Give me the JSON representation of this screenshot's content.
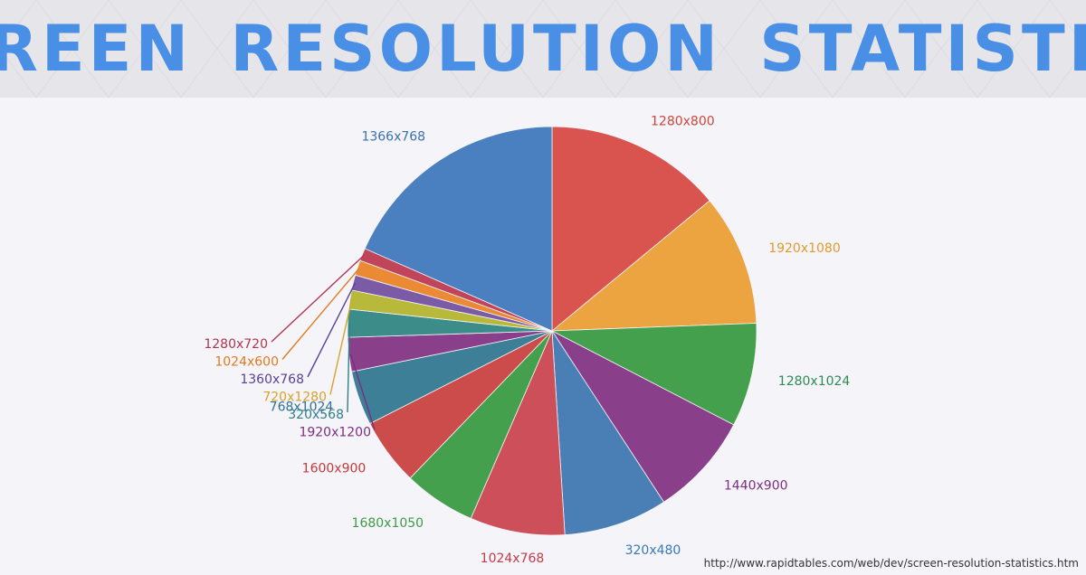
{
  "title": "SCREEN RESOLUTION STATISTICS",
  "source_url": "http://www.rapidtables.com/web/dev/screen-resolution-statistics.htm",
  "chart_data": {
    "type": "pie",
    "start": "top, clockwise",
    "slices": [
      {
        "label": "1280x800",
        "value": 14.0,
        "color": "#d9534f"
      },
      {
        "label": "1920x1080",
        "value": 10.4,
        "color": "#eba43f"
      },
      {
        "label": "1280x1024",
        "value": 8.2,
        "color": "#44a04c"
      },
      {
        "label": "1440x900",
        "value": 8.2,
        "color": "#8a3f8a"
      },
      {
        "label": "320x480",
        "value": 8.2,
        "color": "#4a7fb5"
      },
      {
        "label": "1024x768",
        "value": 7.5,
        "color": "#cc4f59"
      },
      {
        "label": "1680x1050",
        "value": 5.7,
        "color": "#44a04c"
      },
      {
        "label": "1600x900",
        "value": 5.3,
        "color": "#cc4b4b"
      },
      {
        "label": "768x1024",
        "value": 4.3,
        "color": "#3c7f96"
      },
      {
        "label": "1920x1200",
        "value": 2.7,
        "color": "#8a3f8a"
      },
      {
        "label": "320x568",
        "value": 2.2,
        "color": "#3c8d8a"
      },
      {
        "label": "720x1280",
        "value": 1.5,
        "color": "#b8b93a"
      },
      {
        "label": "1360x768",
        "value": 1.2,
        "color": "#7b5aa6"
      },
      {
        "label": "1024x600",
        "value": 1.2,
        "color": "#eb8a35"
      },
      {
        "label": "1280x720",
        "value": 1.0,
        "color": "#c0455a"
      },
      {
        "label": "1366x768",
        "value": 18.4,
        "color": "#4a80c0"
      }
    ],
    "label_colors": {
      "1280x800": "#d0453b",
      "1920x1080": "#e29a2b",
      "1280x1024": "#2e8b57",
      "1440x900": "#7d2e82",
      "320x480": "#3a78b8",
      "1024x768": "#c23b4a",
      "1680x1050": "#3f9a46",
      "1600x900": "#c23b3b",
      "768x1024": "#2f6f99",
      "1920x1200": "#7d2e82",
      "320x568": "#2f7f8a",
      "720x1280": "#d7a22a",
      "1360x768": "#5b3f99",
      "1024x600": "#e07a1f",
      "1280x720": "#b03550",
      "1366x768": "#3a70b0"
    }
  }
}
